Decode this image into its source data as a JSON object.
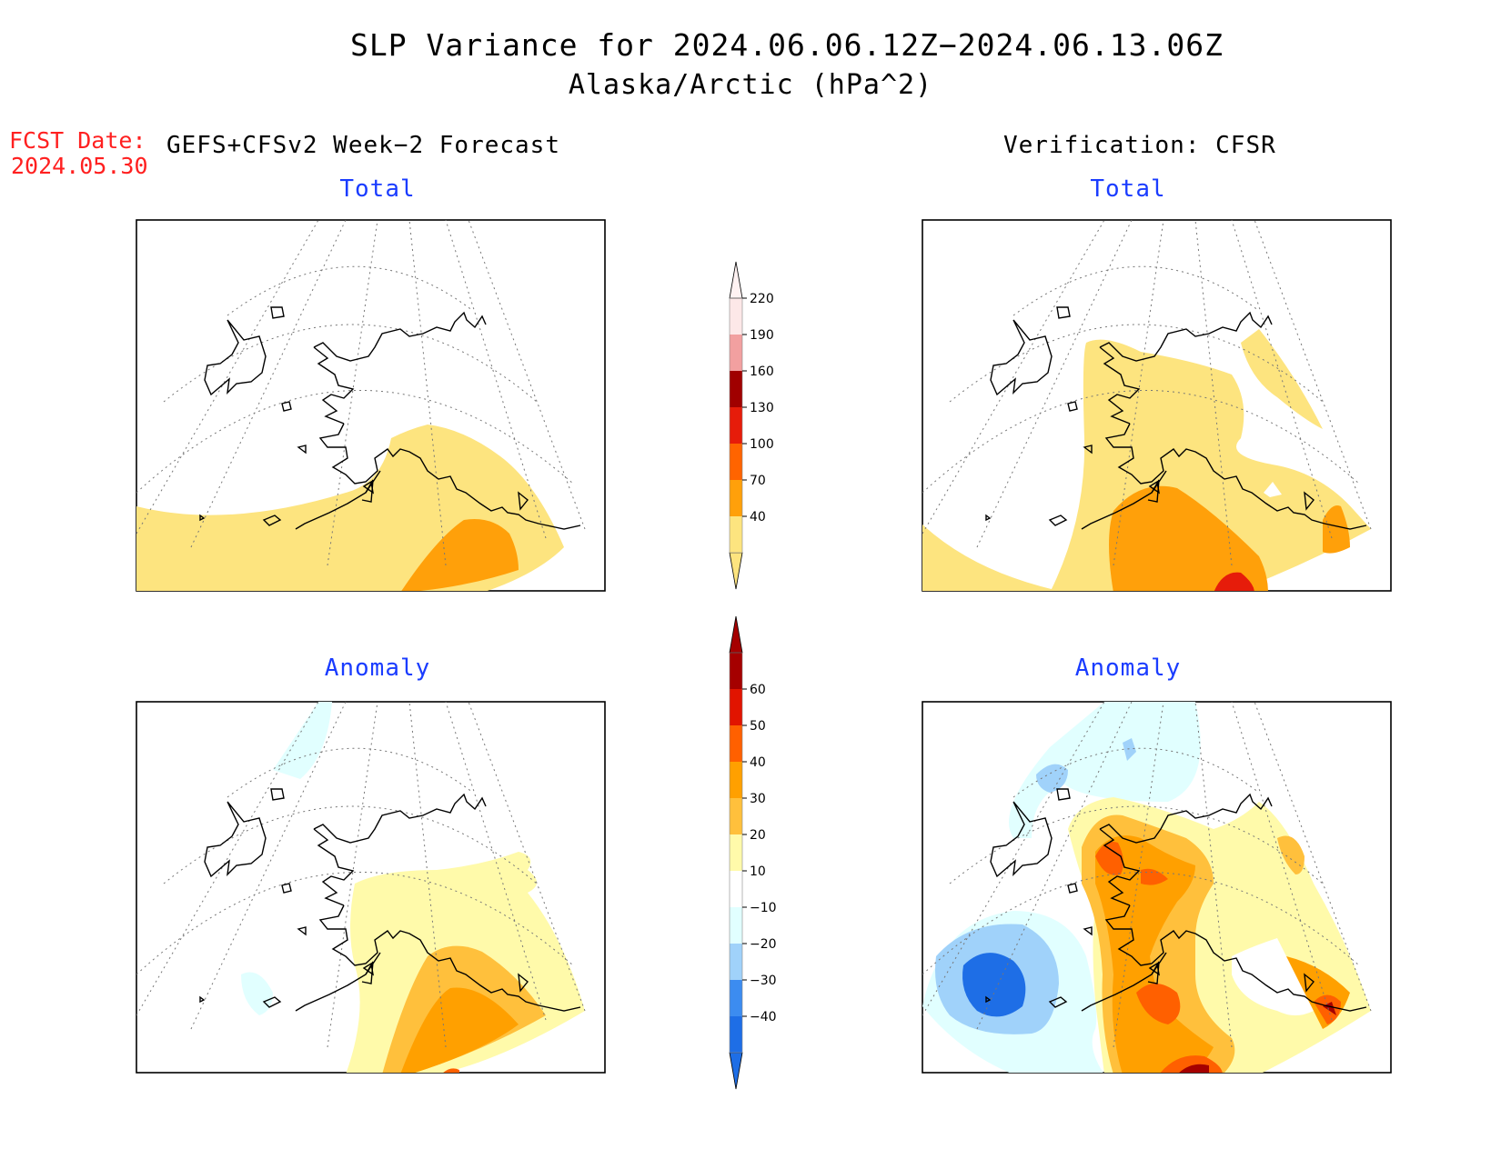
{
  "title": "SLP Variance for 2024.06.06.12Z−2024.06.13.06Z",
  "subtitle": "Alaska/Arctic (hPa^2)",
  "fcst_label": "FCST Date:",
  "fcst_date": "2024.05.30",
  "left_header": "GEFS+CFSv2 Week−2 Forecast",
  "right_header": "Verification: CFSR",
  "panels": {
    "top_left": "Total",
    "top_right": "Total",
    "bottom_left": "Anomaly",
    "bottom_right": "Anomaly"
  },
  "chart_data": [
    {
      "type": "heatmap",
      "name": "total-colorbar",
      "levels": [
        "40",
        "70",
        "100",
        "130",
        "160",
        "190",
        "220"
      ],
      "colors": [
        "#fde47f",
        "#ffa00a",
        "#ff6400",
        "#e61c0a",
        "#a00000",
        "#f2a0a0",
        "#fde8e8"
      ]
    },
    {
      "type": "heatmap",
      "name": "anomaly-colorbar",
      "levels": [
        "−40",
        "−30",
        "−20",
        "−10",
        "10",
        "20",
        "30",
        "40",
        "50",
        "60"
      ],
      "colors": [
        "#1e6ee6",
        "#3c8cf0",
        "#a0d2fa",
        "#e1ffff",
        "#ffffff",
        "#fffaaa",
        "#ffc03c",
        "#ffa000",
        "#ff6000",
        "#e11400",
        "#a50000"
      ]
    }
  ]
}
